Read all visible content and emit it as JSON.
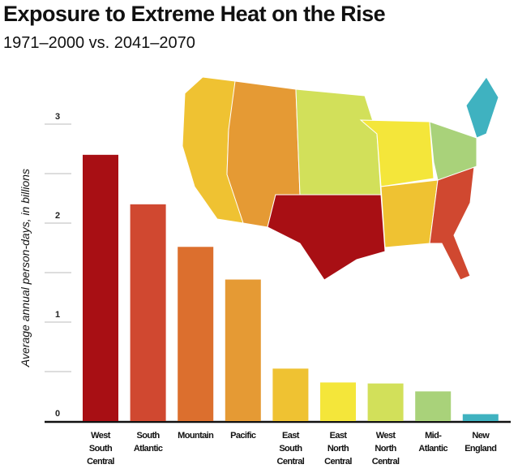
{
  "chart_data": {
    "type": "bar",
    "title": "Exposure to Extreme Heat on the Rise",
    "subtitle": "1971–2000 vs. 2041–2070",
    "xlabel": "",
    "ylabel": "Average annual person-days, in billions",
    "ylim": [
      0,
      3
    ],
    "yticks": [
      0,
      1,
      2,
      3
    ],
    "grid_step": 0.5,
    "categories": [
      [
        "West",
        "South",
        "Central"
      ],
      [
        "South",
        "Atlantic"
      ],
      [
        "Mountain"
      ],
      [
        "Pacific"
      ],
      [
        "East",
        "South",
        "Central"
      ],
      [
        "East",
        "North",
        "Central"
      ],
      [
        "West",
        "North",
        "Central"
      ],
      [
        "Mid-",
        "Atlantic"
      ],
      [
        "New",
        "England"
      ]
    ],
    "values": [
      2.69,
      2.19,
      1.76,
      1.43,
      0.53,
      0.39,
      0.38,
      0.3,
      0.07
    ],
    "colors": [
      "#a80f14",
      "#d04830",
      "#dc6f2e",
      "#e59a34",
      "#efc232",
      "#f4e63a",
      "#d2e05a",
      "#a9d27a",
      "#3fb2c0"
    ],
    "inset": "map of US regions colored by the same scheme"
  }
}
